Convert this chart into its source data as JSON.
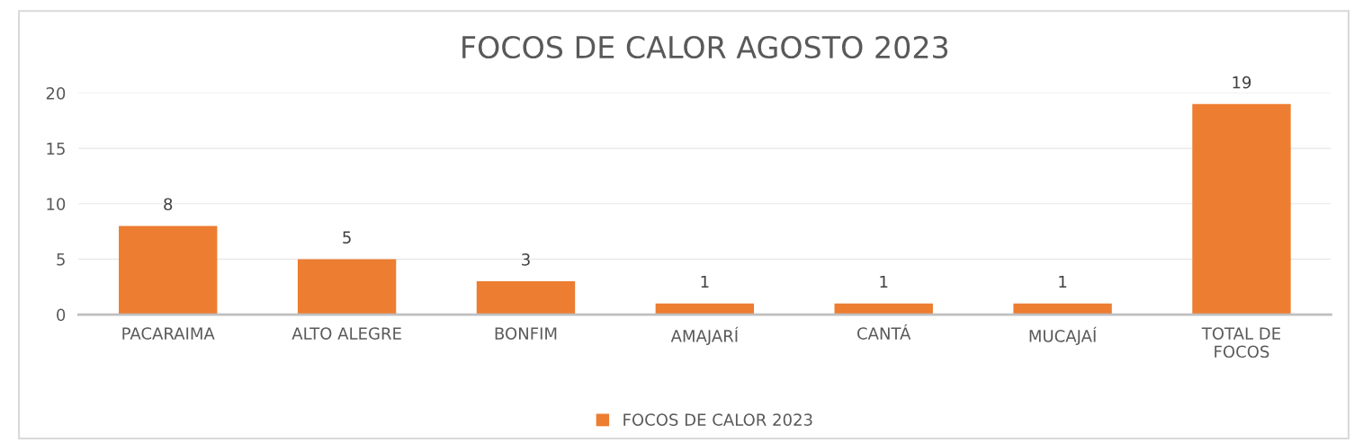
{
  "chart_data": {
    "type": "bar",
    "title": "FOCOS DE CALOR AGOSTO 2023",
    "categories": [
      "PACARAIMA",
      "ALTO ALEGRE",
      "BONFIM",
      "AMAJARÍ",
      "CANTÁ",
      "MUCAJAÍ",
      "TOTAL DE\nFOCOS"
    ],
    "series": [
      {
        "name": "FOCOS DE CALOR 2023",
        "color": "#ed7d31",
        "values": [
          8,
          5,
          3,
          1,
          1,
          1,
          19
        ]
      }
    ],
    "ylim": [
      0,
      20
    ],
    "yticks": [
      0,
      5,
      10,
      15,
      20
    ],
    "grid": "y",
    "legend": "bottom",
    "data_labels": true
  }
}
